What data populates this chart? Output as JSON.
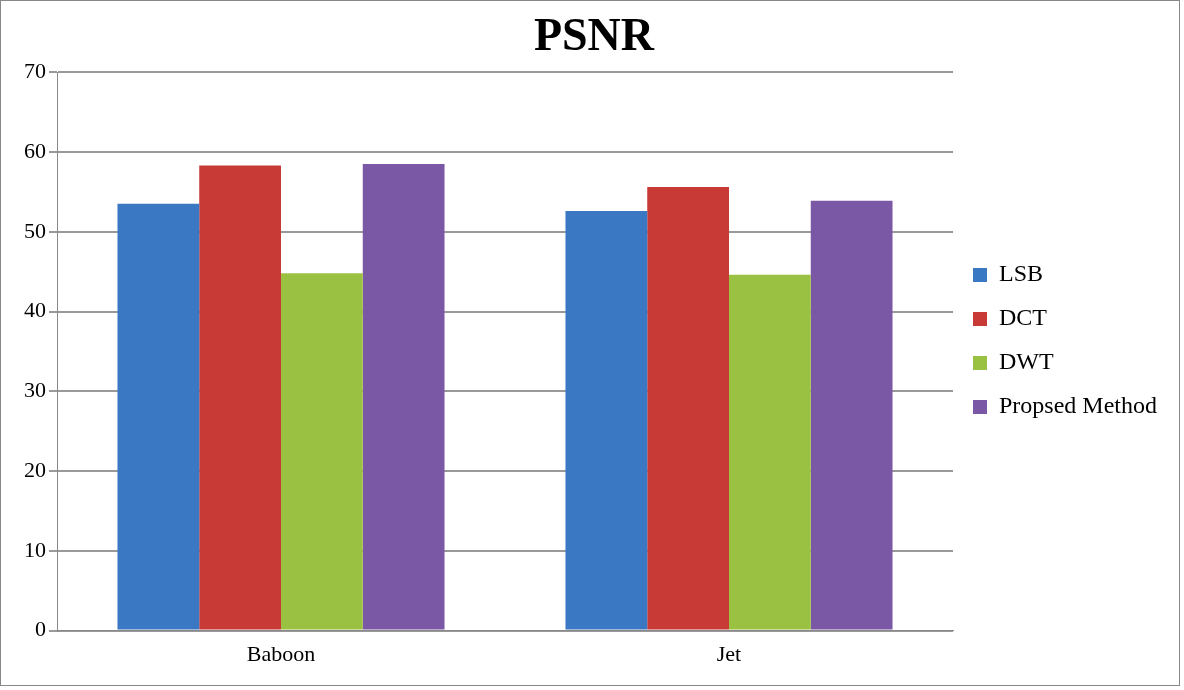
{
  "chart_data": {
    "type": "bar",
    "title": "PSNR",
    "categories": [
      "Baboon",
      "Jet"
    ],
    "series": [
      {
        "name": "LSB",
        "color": "#3a78c3",
        "values": [
          53.5,
          52.6
        ]
      },
      {
        "name": "DCT",
        "color": "#c83a36",
        "values": [
          58.3,
          55.6
        ]
      },
      {
        "name": "DWT",
        "color": "#9bc143",
        "values": [
          44.8,
          44.6
        ]
      },
      {
        "name": "Propsed Method",
        "color": "#7b58a6",
        "values": [
          58.5,
          53.9
        ]
      }
    ],
    "ylim": [
      0,
      70
    ],
    "yticks": [
      0,
      10,
      20,
      30,
      40,
      50,
      60,
      70
    ],
    "grid": "y",
    "legend": "right"
  }
}
